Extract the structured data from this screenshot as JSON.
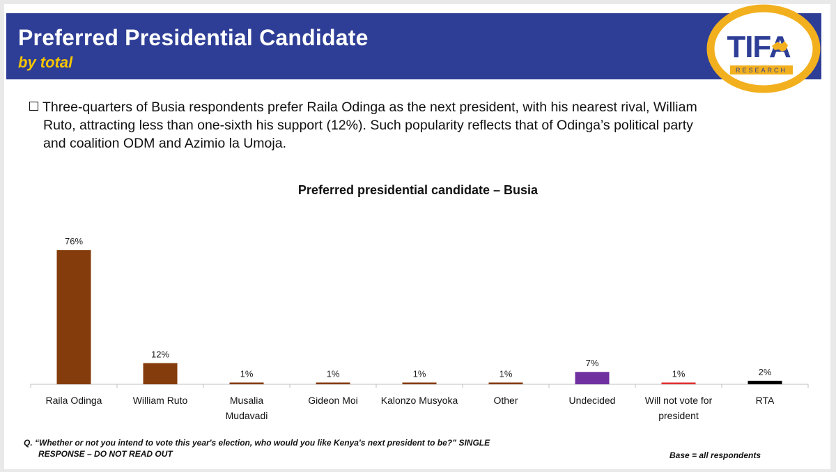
{
  "header": {
    "title": "Preferred Presidential Candidate",
    "subtitle": "by total",
    "logo_text": "TIFA",
    "logo_subtext": "RESEARCH"
  },
  "bullet": {
    "line1": "Three-quarters of Busia respondents prefer Raila Odinga as the next president, with his nearest rival, William",
    "line2": "Ruto, attracting  less than one-sixth his support (12%).  Such popularity reflects that of Odinga’s political party",
    "line3": "and coalition ODM and Azimio la Umoja."
  },
  "chart_data": {
    "type": "bar",
    "title": "Preferred presidential candidate – Busia",
    "xlabel": "",
    "ylabel": "",
    "ylim": [
      0,
      80
    ],
    "grid": false,
    "categories": [
      "Raila Odinga",
      "William Ruto",
      "Musalia Mudavadi",
      "Gideon Moi",
      "Kalonzo Musyoka",
      "Other",
      "Undecided",
      "Will not vote for president",
      "RTA"
    ],
    "category_lines": [
      [
        "Raila Odinga"
      ],
      [
        "William Ruto"
      ],
      [
        "Musalia",
        "Mudavadi"
      ],
      [
        "Gideon Moi"
      ],
      [
        "Kalonzo Musyoka"
      ],
      [
        "Other"
      ],
      [
        "Undecided"
      ],
      [
        "Will not vote for",
        "president"
      ],
      [
        "RTA"
      ]
    ],
    "values": [
      76,
      12,
      1,
      1,
      1,
      1,
      7,
      1,
      2
    ],
    "value_labels": [
      "76%",
      "12%",
      "1%",
      "1%",
      "1%",
      "1%",
      "7%",
      "1%",
      "2%"
    ],
    "colors": [
      "#843c0c",
      "#843c0c",
      "#843c0c",
      "#843c0c",
      "#843c0c",
      "#843c0c",
      "#7030a0",
      "#e03030",
      "#000000"
    ]
  },
  "footnote": {
    "line1": "Q. “Whether or not you intend to vote this year's election, who would you like Kenya's next president to be?” SINGLE",
    "line2": "RESPONSE – DO NOT READ OUT"
  },
  "base_note": "Base = all respondents",
  "colors": {
    "header_bg": "#2e3e96",
    "subtitle": "#f5c400",
    "logo_gold": "#f2b01e"
  }
}
